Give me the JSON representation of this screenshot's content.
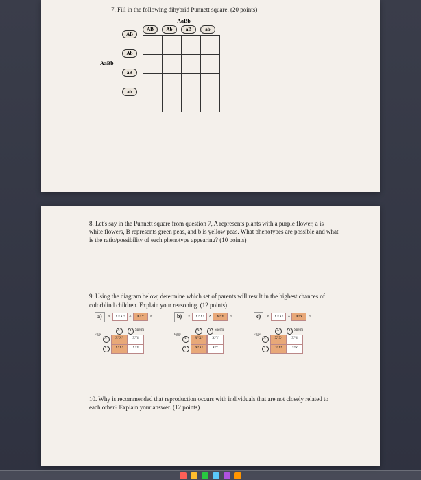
{
  "q7": {
    "text": "7.   Fill in the following dihybrid Punnett square. (20 points)",
    "top_label": "AaBb",
    "left_label": "AaBb",
    "col_headers": [
      "AB",
      "Ab",
      "aB",
      "ab"
    ],
    "row_headers": [
      "AB",
      "Ab",
      "aB",
      "ab"
    ]
  },
  "q8": {
    "num": "8.",
    "text": "Let's say in the Punnett square from question 7, A represents plants with a purple flower, a is white flowers, B represents green peas, and b is yellow peas. What phenotypes are possible and what is the ratio/possibility of each phenotype appearing? (10 points)"
  },
  "q9": {
    "num": "9.",
    "text": "Using the diagram below, determine which set of parents will result in the highest chances of colorblind children. Explain your reasoning. (12 points)",
    "diagrams": [
      {
        "label": "a)",
        "parent_f": "XᴺXᴺ",
        "parent_m": "XᴺY",
        "sperm": [
          "Xᴺ",
          "Y"
        ],
        "eggs": [
          "Xᴺ",
          "Xᴺ"
        ],
        "cells": [
          [
            "XᴺXᴺ",
            "XᴺY"
          ],
          [
            "XᴺXᴺ",
            "XᴺY"
          ]
        ],
        "cell_colors": [
          [
            "o",
            "w"
          ],
          [
            "o",
            "w"
          ]
        ]
      },
      {
        "label": "b)",
        "parent_f": "XᴺXⁿ",
        "parent_m": "XᴺY",
        "sperm": [
          "Xᴺ",
          "Y"
        ],
        "eggs": [
          "Xᴺ",
          "Xⁿ"
        ],
        "cells": [
          [
            "XᴺXᴺ",
            "XᴺY"
          ],
          [
            "XᴺXⁿ",
            "XⁿY"
          ]
        ],
        "cell_colors": [
          [
            "o",
            "w"
          ],
          [
            "o",
            "w"
          ]
        ]
      },
      {
        "label": "c)",
        "parent_f": "XᴺXⁿ",
        "parent_m": "XⁿY",
        "sperm": [
          "Xⁿ",
          "Y"
        ],
        "eggs": [
          "Xᴺ",
          "Xⁿ"
        ],
        "cells": [
          [
            "XᴺXⁿ",
            "XᴺY"
          ],
          [
            "XⁿXⁿ",
            "XⁿY"
          ]
        ],
        "cell_colors": [
          [
            "o",
            "w"
          ],
          [
            "o",
            "w"
          ]
        ]
      }
    ],
    "sperm_word": "Sperm",
    "eggs_word": "Eggs",
    "female_sym": "♀",
    "male_sym": "♂",
    "times": "×"
  },
  "q10": {
    "num": "10.",
    "text": "Why is recommended that reproduction occurs with individuals that are not closely related to each other? Explain your answer. (12 points)"
  },
  "colors": {
    "page_bg": "#f4f0eb",
    "orange": "#e8a878",
    "border": "#333333"
  },
  "dock_colors": [
    "#ff5f57",
    "#ffbd2e",
    "#28c840",
    "#5ac8fa",
    "#af52de",
    "#ff9500"
  ]
}
